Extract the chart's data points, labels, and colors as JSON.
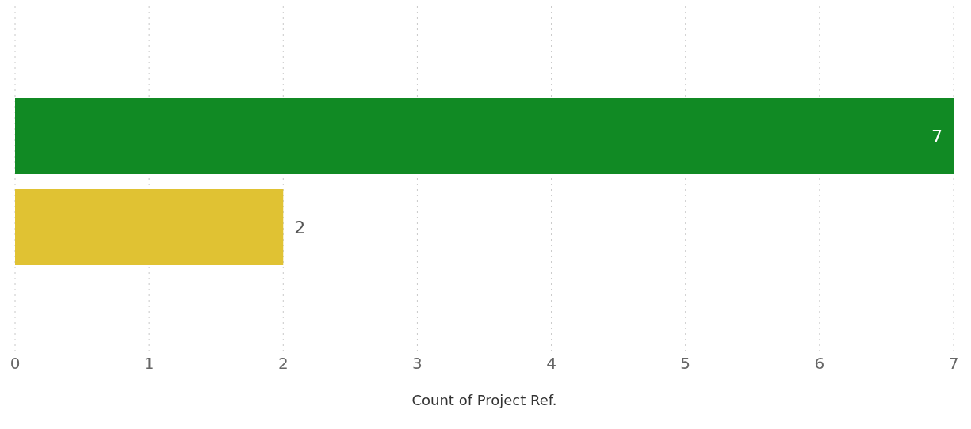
{
  "chart_data": {
    "type": "bar",
    "orientation": "horizontal",
    "xlabel": "Count of Project Ref.",
    "categories": [
      null,
      null
    ],
    "values": [
      7,
      2
    ],
    "colors": [
      "#118a24",
      "#e0c233"
    ],
    "xlim": [
      0,
      7
    ],
    "xticks": [
      0,
      1,
      2,
      3,
      4,
      5,
      6,
      7
    ],
    "grid": "x",
    "data_labels": true,
    "tick_labels": "x",
    "legend": false
  }
}
